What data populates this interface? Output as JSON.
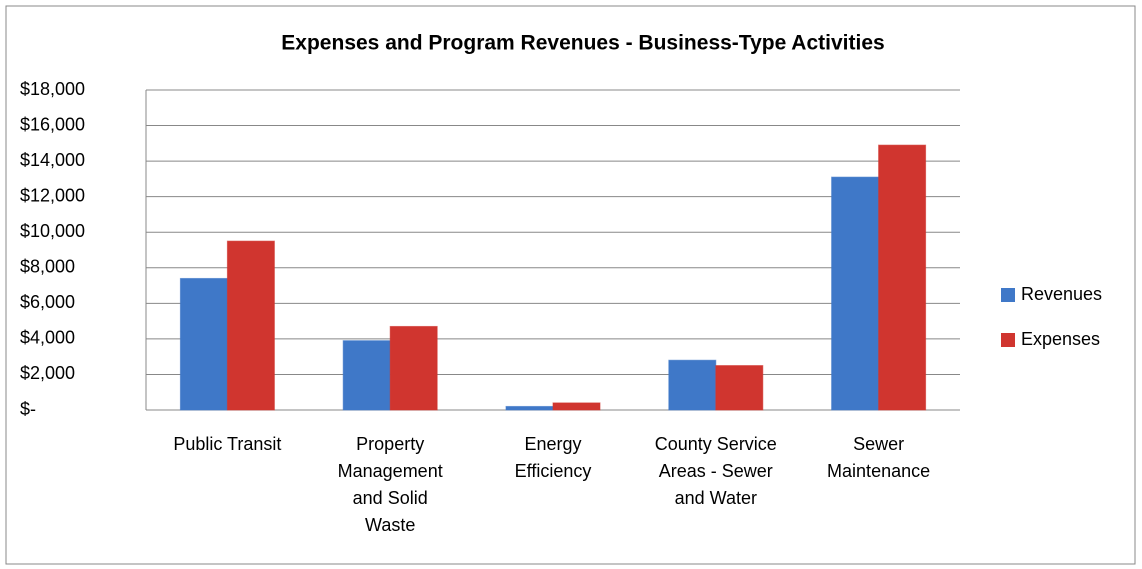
{
  "chart_data": {
    "type": "bar",
    "title": "Expenses and Program Revenues - Business-Type Activities",
    "categories": [
      "Public Transit",
      "Property Management and Solid Waste",
      "Energy Efficiency",
      "County Service Areas - Sewer and Water",
      "Sewer Maintenance"
    ],
    "series": [
      {
        "name": "Revenues",
        "color": "#3f78c8",
        "values": [
          7400,
          3900,
          200,
          2800,
          13100
        ]
      },
      {
        "name": "Expenses",
        "color": "#d0352f",
        "values": [
          9500,
          4700,
          400,
          2500,
          14900
        ]
      }
    ],
    "ylim": [
      0,
      18000
    ],
    "yticks": [
      {
        "value": 0,
        "label": "$-"
      },
      {
        "value": 2000,
        "label": "$2,000"
      },
      {
        "value": 4000,
        "label": "$4,000"
      },
      {
        "value": 6000,
        "label": "$6,000"
      },
      {
        "value": 8000,
        "label": "$8,000"
      },
      {
        "value": 10000,
        "label": "$10,000"
      },
      {
        "value": 12000,
        "label": "$12,000"
      },
      {
        "value": 14000,
        "label": "$14,000"
      },
      {
        "value": 16000,
        "label": "$16,000"
      },
      {
        "value": 18000,
        "label": "$18,000"
      }
    ],
    "grid": true,
    "legend": "right"
  }
}
